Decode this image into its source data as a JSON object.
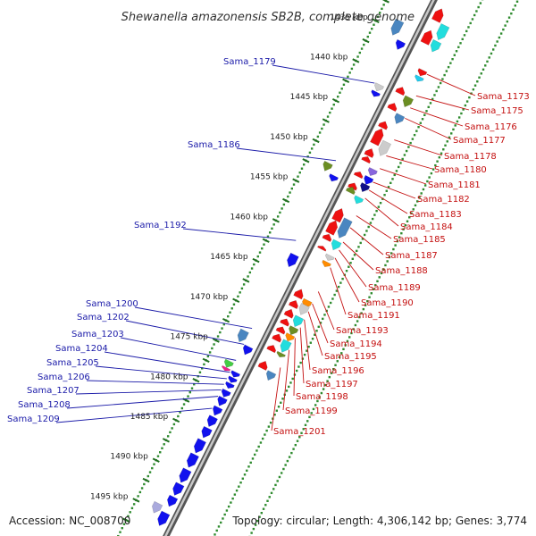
{
  "title": "Shewanella amazonensis SB2B, complete genome",
  "accession_text": "Accession: NC_008700",
  "topology_text": "Topology: circular; Length: 4,306,142 bp; Genes: 3,774",
  "scale": {
    "kbp_labels": [
      {
        "kbp": 1435,
        "label": "1435 kbp"
      },
      {
        "kbp": 1440,
        "label": "1440 kbp"
      },
      {
        "kbp": 1445,
        "label": "1445 kbp"
      },
      {
        "kbp": 1450,
        "label": "1450 kbp"
      },
      {
        "kbp": 1455,
        "label": "1455 kbp"
      },
      {
        "kbp": 1460,
        "label": "1460 kbp"
      },
      {
        "kbp": 1465,
        "label": "1465 kbp"
      },
      {
        "kbp": 1470,
        "label": "1470 kbp"
      },
      {
        "kbp": 1475,
        "label": "1475 kbp"
      },
      {
        "kbp": 1480,
        "label": "1480 kbp"
      },
      {
        "kbp": 1485,
        "label": "1485 kbp"
      },
      {
        "kbp": 1490,
        "label": "1490 kbp"
      },
      {
        "kbp": 1495,
        "label": "1495 kbp"
      }
    ]
  },
  "left_labels": [
    {
      "text": "Sama_1179",
      "kbp": 1441.3
    },
    {
      "text": "Sama_1186",
      "kbp": 1451.0
    },
    {
      "text": "Sama_1192",
      "kbp": 1461.0
    },
    {
      "text": "Sama_1200",
      "kbp": 1472.0
    },
    {
      "text": "Sama_1202",
      "kbp": 1474.0
    },
    {
      "text": "Sama_1203",
      "kbp": 1476.0
    },
    {
      "text": "Sama_1204",
      "kbp": 1477.5
    },
    {
      "text": "Sama_1205",
      "kbp": 1478.3
    },
    {
      "text": "Sama_1206",
      "kbp": 1479.0
    },
    {
      "text": "Sama_1207",
      "kbp": 1479.7
    },
    {
      "text": "Sama_1208",
      "kbp": 1480.5
    },
    {
      "text": "Sama_1209",
      "kbp": 1482.0
    }
  ],
  "right_labels": [
    {
      "text": "Sama_1173",
      "kbp": 1437.8
    },
    {
      "text": "Sama_1175",
      "kbp": 1440.5
    },
    {
      "text": "Sama_1176",
      "kbp": 1442.0
    },
    {
      "text": "Sama_1177",
      "kbp": 1443.3
    },
    {
      "text": "Sama_1178",
      "kbp": 1446.0
    },
    {
      "text": "Sama_1180",
      "kbp": 1448.0
    },
    {
      "text": "Sama_1181",
      "kbp": 1449.6
    },
    {
      "text": "Sama_1182",
      "kbp": 1451.3
    },
    {
      "text": "Sama_1183",
      "kbp": 1452.3
    },
    {
      "text": "Sama_1184",
      "kbp": 1453.3
    },
    {
      "text": "Sama_1185",
      "kbp": 1455.5
    },
    {
      "text": "Sama_1187",
      "kbp": 1457.0
    },
    {
      "text": "Sama_1188",
      "kbp": 1458.8
    },
    {
      "text": "Sama_1189",
      "kbp": 1459.8
    },
    {
      "text": "Sama_1190",
      "kbp": 1460.8
    },
    {
      "text": "Sama_1191",
      "kbp": 1462.0
    },
    {
      "text": "Sama_1193",
      "kbp": 1465.0
    },
    {
      "text": "Sama_1194",
      "kbp": 1466.5
    },
    {
      "text": "Sama_1195",
      "kbp": 1467.5
    },
    {
      "text": "Sama_1196",
      "kbp": 1468.5
    },
    {
      "text": "Sama_1197",
      "kbp": 1469.5
    },
    {
      "text": "Sama_1198",
      "kbp": 1470.8
    },
    {
      "text": "Sama_1199",
      "kbp": 1472.3
    },
    {
      "text": "Sama_1201",
      "kbp": 1474.5
    }
  ],
  "genes": [
    {
      "start": 1430.5,
      "end": 1432.0,
      "track": 1,
      "strand": "-",
      "color": "#ee1111"
    },
    {
      "start": 1432.0,
      "end": 1433.8,
      "track": 2,
      "strand": "+",
      "color": "#22dddd"
    },
    {
      "start": 1434.0,
      "end": 1435.3,
      "track": 2,
      "strand": "+",
      "color": "#22dddd"
    },
    {
      "start": 1433.2,
      "end": 1434.8,
      "track": 1,
      "strand": "-",
      "color": "#ee1111"
    },
    {
      "start": 1433.8,
      "end": 1435.6,
      "track": -2,
      "strand": "+",
      "color": "#4a86c0"
    },
    {
      "start": 1435.8,
      "end": 1436.8,
      "track": -1,
      "strand": "+",
      "color": "#1111ee"
    },
    {
      "start": 1437.6,
      "end": 1438.3,
      "track": 2,
      "strand": "+",
      "color": "#ee1111"
    },
    {
      "start": 1438.4,
      "end": 1439.0,
      "track": 2,
      "strand": "+",
      "color": "#22ccee"
    },
    {
      "start": 1440.3,
      "end": 1441.1,
      "track": 1,
      "strand": "-",
      "color": "#ee1111"
    },
    {
      "start": 1441.0,
      "end": 1442.2,
      "track": 2,
      "strand": "+",
      "color": "#6b8e23"
    },
    {
      "start": 1442.3,
      "end": 1443.1,
      "track": 1,
      "strand": "-",
      "color": "#ee1111"
    },
    {
      "start": 1443.2,
      "end": 1444.3,
      "track": 2,
      "strand": "+",
      "color": "#4a86c0"
    },
    {
      "start": 1441.2,
      "end": 1442.0,
      "track": -1,
      "strand": "+",
      "color": "#cccccc"
    },
    {
      "start": 1442.1,
      "end": 1442.7,
      "track": -1,
      "strand": "+",
      "color": "#1111ee"
    },
    {
      "start": 1444.6,
      "end": 1445.4,
      "track": 1,
      "strand": "-",
      "color": "#ee1111"
    },
    {
      "start": 1445.5,
      "end": 1447.4,
      "track": 1,
      "strand": "-",
      "color": "#ee1111"
    },
    {
      "start": 1446.6,
      "end": 1448.3,
      "track": 2,
      "strand": "+",
      "color": "#cccccc"
    },
    {
      "start": 1448.0,
      "end": 1448.9,
      "track": 1,
      "strand": "-",
      "color": "#ee1111"
    },
    {
      "start": 1449.0,
      "end": 1449.6,
      "track": 1,
      "strand": "-",
      "color": "#ee1111"
    },
    {
      "start": 1450.0,
      "end": 1450.8,
      "track": 2,
      "strand": "+",
      "color": "#8866dd"
    },
    {
      "start": 1450.9,
      "end": 1451.5,
      "track": 1,
      "strand": "-",
      "color": "#ee1111"
    },
    {
      "start": 1451.0,
      "end": 1451.9,
      "track": 2,
      "strand": "+",
      "color": "#1111ee"
    },
    {
      "start": 1451.9,
      "end": 1452.8,
      "track": 2,
      "strand": "+",
      "color": "#111188"
    },
    {
      "start": 1452.3,
      "end": 1453.0,
      "track": 1,
      "strand": "-",
      "color": "#ee1111"
    },
    {
      "start": 1452.8,
      "end": 1453.5,
      "track": 1,
      "strand": "-",
      "color": "#6b8e23"
    },
    {
      "start": 1453.5,
      "end": 1454.3,
      "track": 2,
      "strand": "+",
      "color": "#22dddd"
    },
    {
      "start": 1451.6,
      "end": 1452.6,
      "track": -2,
      "strand": "+",
      "color": "#6b8e23"
    },
    {
      "start": 1452.6,
      "end": 1453.3,
      "track": -1,
      "strand": "+",
      "color": "#1111ee"
    },
    {
      "start": 1455.5,
      "end": 1457.0,
      "track": 1,
      "strand": "-",
      "color": "#ee1111"
    },
    {
      "start": 1457.0,
      "end": 1458.6,
      "track": 1,
      "strand": "-",
      "color": "#ee1111"
    },
    {
      "start": 1456.3,
      "end": 1458.6,
      "track": 2,
      "strand": "+",
      "color": "#4a86c0"
    },
    {
      "start": 1458.7,
      "end": 1459.4,
      "track": 1,
      "strand": "-",
      "color": "#ee1111"
    },
    {
      "start": 1459.0,
      "end": 1460.1,
      "track": 2,
      "strand": "+",
      "color": "#22dddd"
    },
    {
      "start": 1460.2,
      "end": 1460.6,
      "track": 1,
      "strand": "-",
      "color": "#ee1111"
    },
    {
      "start": 1460.8,
      "end": 1461.4,
      "track": 2,
      "strand": "+",
      "color": "#cccccc"
    },
    {
      "start": 1461.6,
      "end": 1462.2,
      "track": 2,
      "strand": "+",
      "color": "#ff8c00"
    },
    {
      "start": 1462.5,
      "end": 1464.0,
      "track": -1,
      "strand": "+",
      "color": "#1111ee"
    },
    {
      "start": 1465.6,
      "end": 1466.6,
      "track": 1,
      "strand": "-",
      "color": "#ee1111"
    },
    {
      "start": 1466.4,
      "end": 1467.4,
      "track": 2,
      "strand": "+",
      "color": "#ff8c00"
    },
    {
      "start": 1467.0,
      "end": 1467.8,
      "track": 1,
      "strand": "-",
      "color": "#ee1111"
    },
    {
      "start": 1467.0,
      "end": 1468.2,
      "track": 2,
      "strand": "+",
      "color": "#cccccc"
    },
    {
      "start": 1468.1,
      "end": 1469.0,
      "track": 1,
      "strand": "-",
      "color": "#ee1111"
    },
    {
      "start": 1468.5,
      "end": 1469.7,
      "track": 2,
      "strand": "+",
      "color": "#22dddd"
    },
    {
      "start": 1469.3,
      "end": 1470.0,
      "track": 1,
      "strand": "-",
      "color": "#ee1111"
    },
    {
      "start": 1469.8,
      "end": 1470.7,
      "track": 2,
      "strand": "+",
      "color": "#6b8e23"
    },
    {
      "start": 1470.3,
      "end": 1471.0,
      "track": 1,
      "strand": "-",
      "color": "#ee1111"
    },
    {
      "start": 1470.7,
      "end": 1471.5,
      "track": 2,
      "strand": "+",
      "color": "#ff8c00"
    },
    {
      "start": 1471.2,
      "end": 1472.0,
      "track": 1,
      "strand": "-",
      "color": "#ee1111"
    },
    {
      "start": 1471.5,
      "end": 1472.9,
      "track": 2,
      "strand": "+",
      "color": "#22dddd"
    },
    {
      "start": 1472.6,
      "end": 1473.3,
      "track": 1,
      "strand": "-",
      "color": "#ee1111"
    },
    {
      "start": 1473.0,
      "end": 1473.5,
      "track": 2,
      "strand": "+",
      "color": "#6b8e23"
    },
    {
      "start": 1474.6,
      "end": 1475.5,
      "track": 1,
      "strand": "-",
      "color": "#ee1111"
    },
    {
      "start": 1475.4,
      "end": 1476.4,
      "track": 2,
      "strand": "+",
      "color": "#4a86c0"
    },
    {
      "start": 1472.6,
      "end": 1474.0,
      "track": -2,
      "strand": "+",
      "color": "#4a86c0"
    },
    {
      "start": 1474.0,
      "end": 1475.0,
      "track": -1,
      "strand": "+",
      "color": "#1111ee"
    },
    {
      "start": 1476.4,
      "end": 1477.2,
      "track": -2,
      "strand": "+",
      "color": "#44cc44"
    },
    {
      "start": 1477.2,
      "end": 1477.6,
      "track": -2,
      "strand": "+",
      "color": "#ee2288"
    },
    {
      "start": 1477.2,
      "end": 1477.8,
      "track": -1,
      "strand": "+",
      "color": "#1111ee"
    },
    {
      "start": 1477.9,
      "end": 1478.5,
      "track": -1,
      "strand": "+",
      "color": "#1111ee"
    },
    {
      "start": 1478.6,
      "end": 1479.2,
      "track": -1,
      "strand": "+",
      "color": "#1111ee"
    },
    {
      "start": 1479.5,
      "end": 1480.3,
      "track": -1,
      "strand": "+",
      "color": "#1111ee"
    },
    {
      "start": 1480.4,
      "end": 1481.4,
      "track": -1,
      "strand": "+",
      "color": "#1111ee"
    },
    {
      "start": 1481.6,
      "end": 1482.6,
      "track": -1,
      "strand": "+",
      "color": "#1111ee"
    },
    {
      "start": 1482.8,
      "end": 1484.0,
      "track": -1,
      "strand": "+",
      "color": "#1111ee"
    },
    {
      "start": 1484.2,
      "end": 1485.4,
      "track": -1,
      "strand": "+",
      "color": "#1111ee"
    },
    {
      "start": 1485.7,
      "end": 1487.3,
      "track": -1,
      "strand": "+",
      "color": "#1111ee"
    },
    {
      "start": 1487.5,
      "end": 1489.1,
      "track": -1,
      "strand": "+",
      "color": "#1111ee"
    },
    {
      "start": 1489.4,
      "end": 1491.0,
      "track": -1,
      "strand": "+",
      "color": "#1111ee"
    },
    {
      "start": 1491.2,
      "end": 1492.6,
      "track": -1,
      "strand": "+",
      "color": "#1111ee"
    },
    {
      "start": 1492.8,
      "end": 1494.0,
      "track": -1,
      "strand": "+",
      "color": "#1111ee"
    },
    {
      "start": 1494.2,
      "end": 1495.4,
      "track": -2,
      "strand": "+",
      "color": "#aaaadd"
    },
    {
      "start": 1494.8,
      "end": 1496.4,
      "track": -1,
      "strand": "+",
      "color": "#1111ee"
    }
  ]
}
